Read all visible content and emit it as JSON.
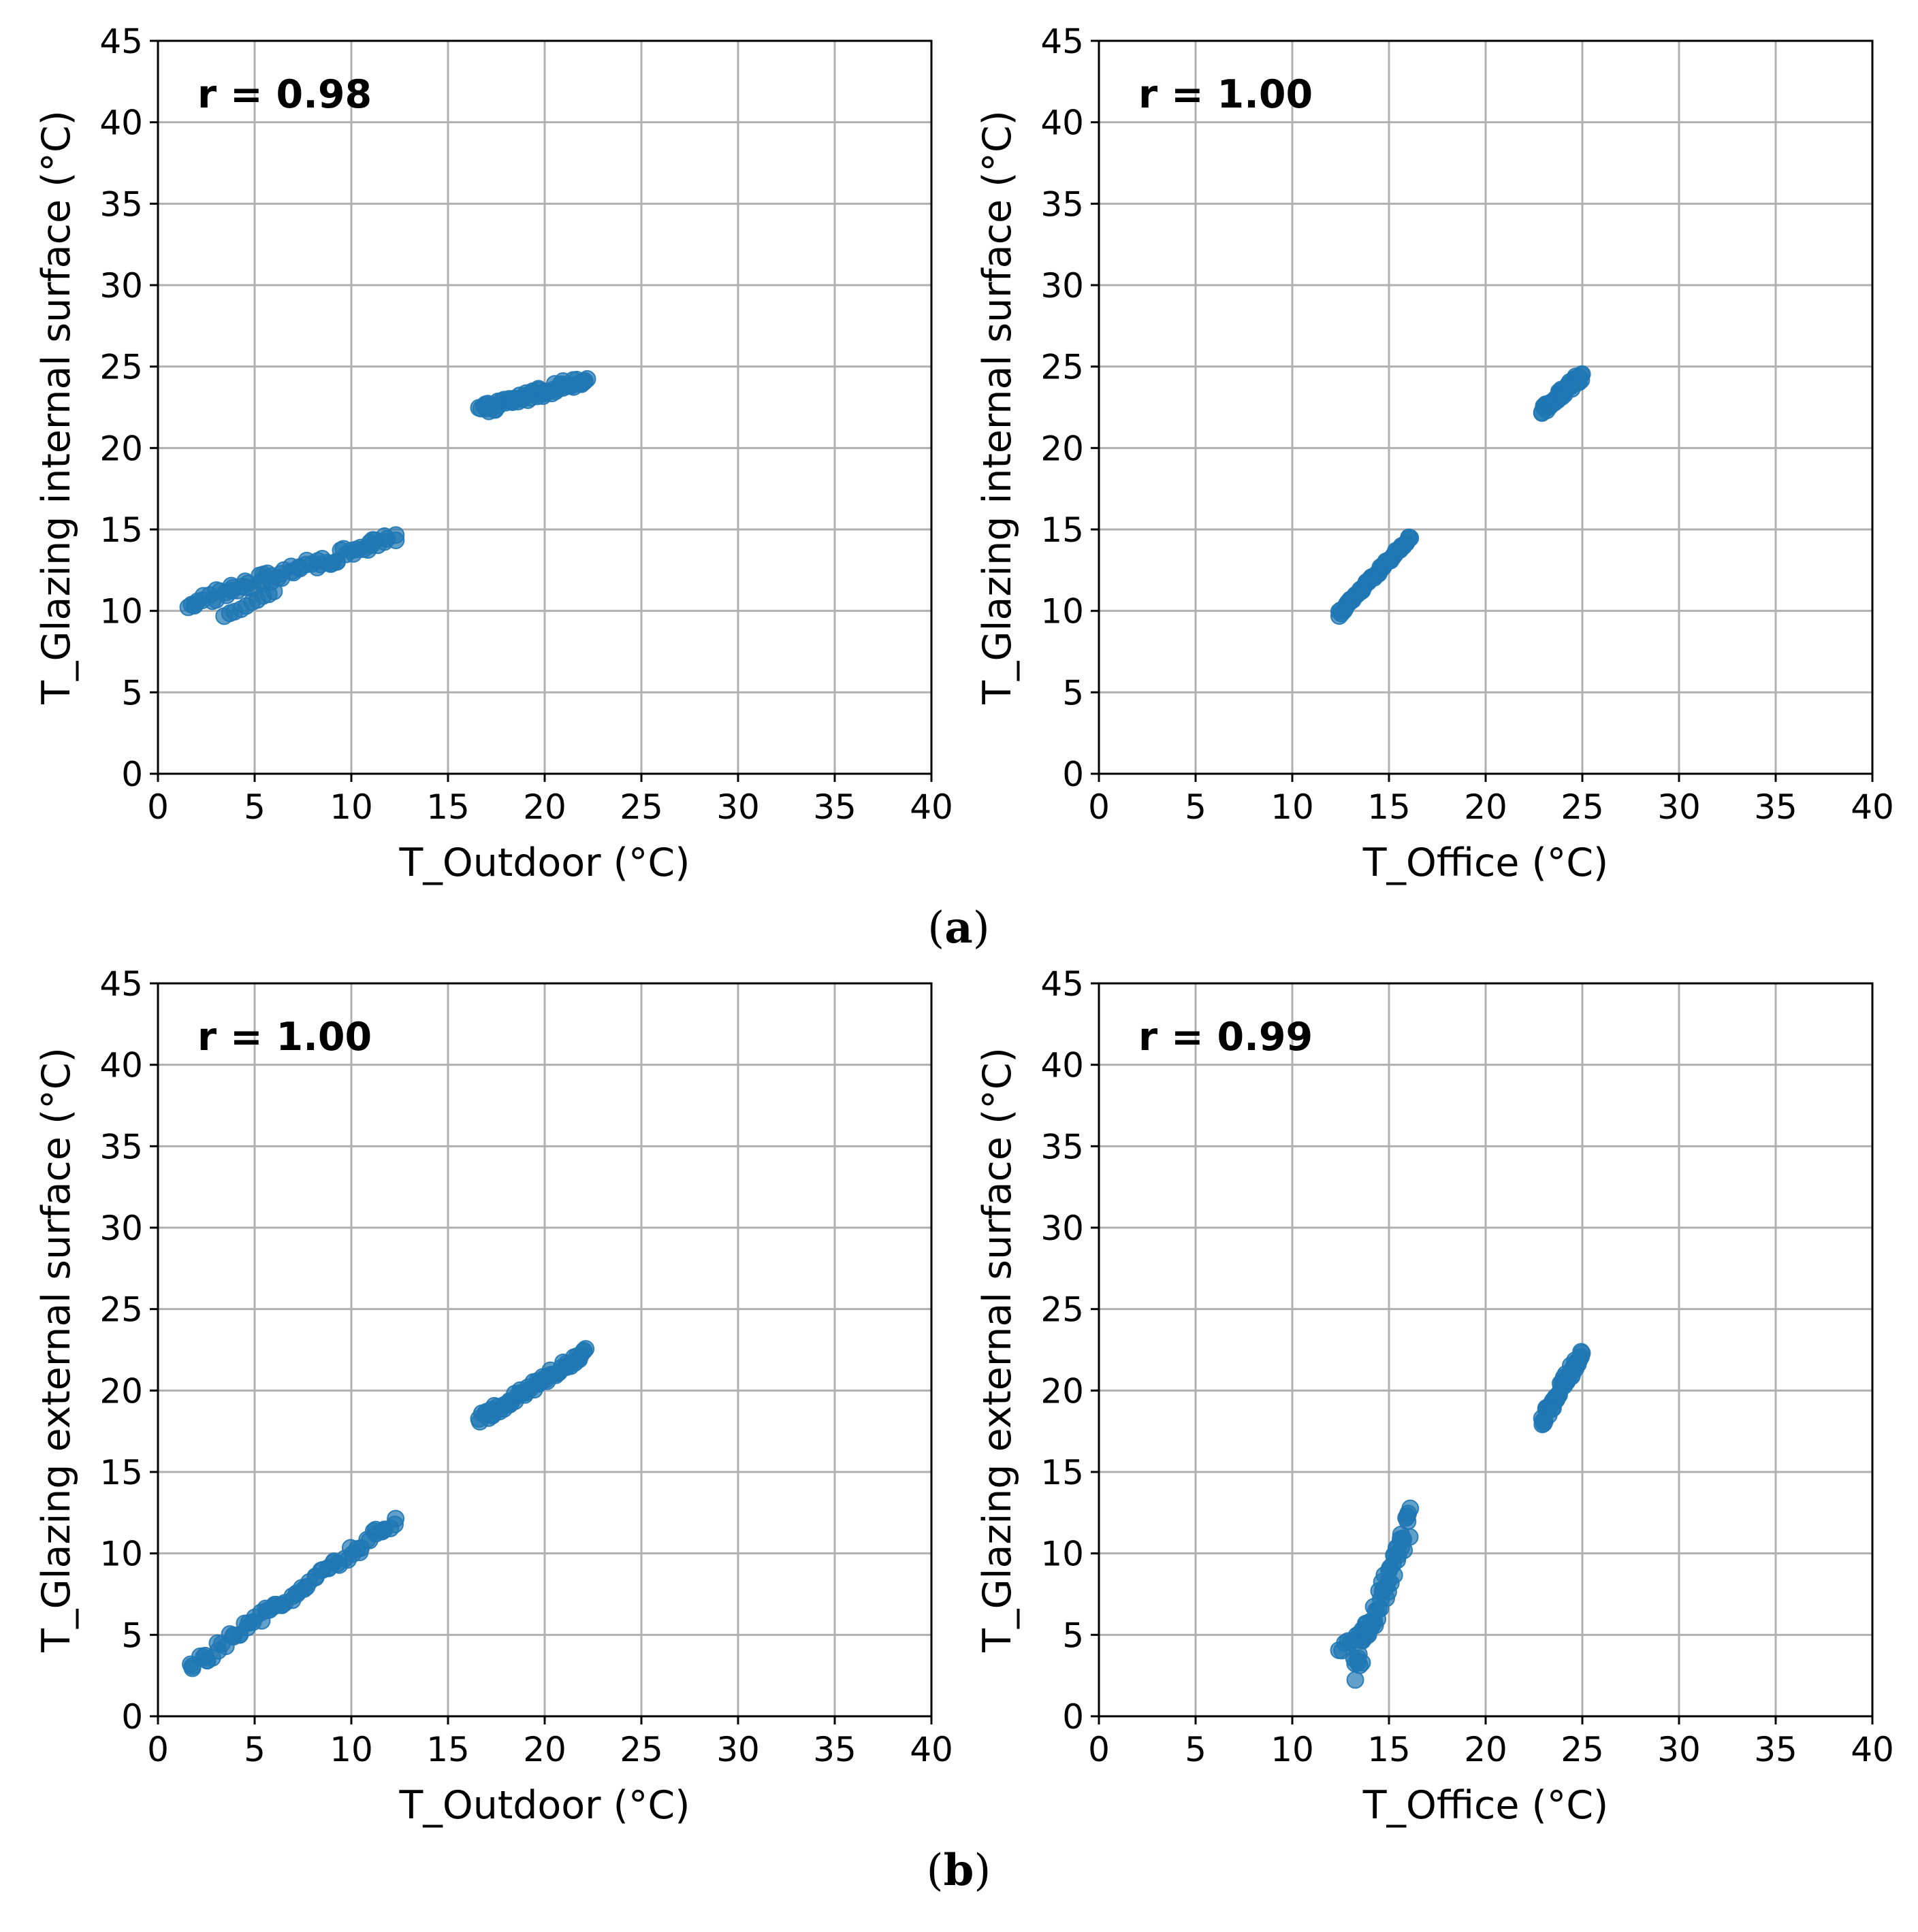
{
  "chart_data": [
    {
      "type": "scatter",
      "panel": "a",
      "position": "left",
      "annotation": "r = 0.98",
      "xlabel": "T_Outdoor (°C)",
      "ylabel": "T_Glazing internal surface (°C)",
      "xlim": [
        0,
        40
      ],
      "ylim": [
        0,
        45
      ],
      "xticks": [
        "0",
        "5",
        "10",
        "15",
        "20",
        "25",
        "30",
        "35",
        "40"
      ],
      "yticks": [
        "0",
        "5",
        "10",
        "15",
        "20",
        "25",
        "30",
        "35",
        "40",
        "45"
      ],
      "grid": true,
      "color": "#1f77b4",
      "clusters": [
        {
          "x_range": [
            1.5,
            12.3
          ],
          "y_start": 10.4,
          "y_end": 14.5,
          "n": 70,
          "spread": 0.35
        },
        {
          "x_range": [
            3.4,
            6.0
          ],
          "y_start": 9.7,
          "y_end": 11.2,
          "n": 10,
          "spread": 0.15
        },
        {
          "x_range": [
            16.6,
            22.2
          ],
          "y_start": 22.3,
          "y_end": 24.3,
          "n": 60,
          "spread": 0.3
        }
      ]
    },
    {
      "type": "scatter",
      "panel": "a",
      "position": "right",
      "annotation": "r = 1.00",
      "xlabel": "T_Office (°C)",
      "ylabel": "T_Glazing internal surface (°C)",
      "xlim": [
        0,
        40
      ],
      "ylim": [
        0,
        45
      ],
      "xticks": [
        "0",
        "5",
        "10",
        "15",
        "20",
        "25",
        "30",
        "35",
        "40"
      ],
      "yticks": [
        "0",
        "5",
        "10",
        "15",
        "20",
        "25",
        "30",
        "35",
        "40",
        "45"
      ],
      "grid": true,
      "color": "#1f77b4",
      "clusters": [
        {
          "x_range": [
            12.4,
            16.1
          ],
          "y_start": 9.8,
          "y_end": 14.5,
          "n": 60,
          "spread": 0.15
        },
        {
          "x_range": [
            22.9,
            25.0
          ],
          "y_start": 22.2,
          "y_end": 24.5,
          "n": 50,
          "spread": 0.3
        }
      ]
    },
    {
      "type": "scatter",
      "panel": "b",
      "position": "left",
      "annotation": "r = 1.00",
      "xlabel": "T_Outdoor (°C)",
      "ylabel": "T_Glazing external surface (°C)",
      "xlim": [
        0,
        40
      ],
      "ylim": [
        0,
        45
      ],
      "xticks": [
        "0",
        "5",
        "10",
        "15",
        "20",
        "25",
        "30",
        "35",
        "40"
      ],
      "yticks": [
        "0",
        "5",
        "10",
        "15",
        "20",
        "25",
        "30",
        "35",
        "40",
        "45"
      ],
      "grid": true,
      "color": "#1f77b4",
      "clusters": [
        {
          "x_range": [
            1.6,
            12.3
          ],
          "y_start": 2.9,
          "y_end": 12.0,
          "n": 70,
          "spread": 0.35
        },
        {
          "x_range": [
            16.6,
            22.2
          ],
          "y_start": 18.2,
          "y_end": 22.4,
          "n": 60,
          "spread": 0.3
        }
      ]
    },
    {
      "type": "scatter",
      "panel": "b",
      "position": "right",
      "annotation": "r = 0.99",
      "xlabel": "T_Office (°C)",
      "ylabel": "T_Glazing external surface (°C)",
      "xlim": [
        0,
        40
      ],
      "ylim": [
        0,
        45
      ],
      "xticks": [
        "0",
        "5",
        "10",
        "15",
        "20",
        "25",
        "30",
        "35",
        "40"
      ],
      "yticks": [
        "0",
        "5",
        "10",
        "15",
        "20",
        "25",
        "30",
        "35",
        "40",
        "45"
      ],
      "grid": true,
      "color": "#1f77b4",
      "clusters": [
        {
          "x_range": [
            12.4,
            13.8
          ],
          "y_start": 4.0,
          "y_end": 5.5,
          "n": 10,
          "spread": 0.2
        },
        {
          "x_range": [
            13.2,
            16.1
          ],
          "y_start": 2.9,
          "y_end": 12.0,
          "n": 60,
          "spread": 0.9
        },
        {
          "x_range": [
            22.9,
            25.0
          ],
          "y_start": 18.1,
          "y_end": 22.4,
          "n": 50,
          "spread": 0.4
        }
      ]
    }
  ],
  "captions": {
    "a": [
      "(",
      "a",
      ")"
    ],
    "b": [
      "(",
      "b",
      ")"
    ]
  }
}
